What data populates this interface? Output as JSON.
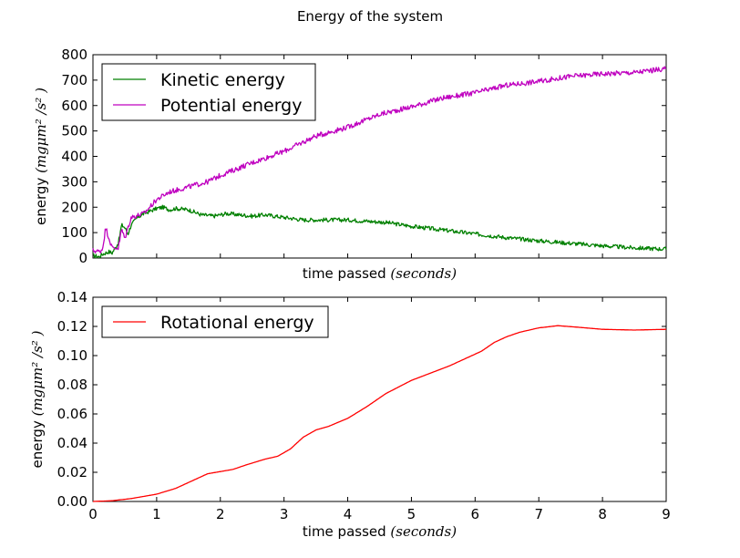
{
  "figure": {
    "title": "Energy of the system"
  },
  "chart_data": [
    {
      "type": "line",
      "xlabel_text": "time passed",
      "xlabel_unit": "(seconds)",
      "ylabel_text": "energy",
      "ylabel_unit": "(mgμm² /s² )",
      "xlim": [
        0,
        9
      ],
      "ylim": [
        0,
        800
      ],
      "x_ticks_labeled": false,
      "yticks": [
        0,
        100,
        200,
        300,
        400,
        500,
        600,
        700,
        800
      ],
      "xticks": [
        0,
        1,
        2,
        3,
        4,
        5,
        6,
        7,
        8,
        9
      ],
      "legend_position": "top-left",
      "series": [
        {
          "name": "Kinetic energy",
          "color": "#008000",
          "noise": 8,
          "x": [
            0,
            0.1,
            0.15,
            0.25,
            0.3,
            0.4,
            0.45,
            0.5,
            0.55,
            0.6,
            0.7,
            0.8,
            0.9,
            1.0,
            1.1,
            1.2,
            1.3,
            1.5,
            1.7,
            1.9,
            2.1,
            2.3,
            2.5,
            2.7,
            3.0,
            3.3,
            3.6,
            4.0,
            4.3,
            4.6,
            5.0,
            5.5,
            6.0,
            6.5,
            7.0,
            7.5,
            8.0,
            8.5,
            9.0
          ],
          "values": [
            10,
            5,
            15,
            25,
            20,
            60,
            130,
            120,
            95,
            130,
            160,
            175,
            185,
            195,
            200,
            190,
            195,
            190,
            170,
            165,
            175,
            170,
            165,
            170,
            160,
            150,
            150,
            150,
            145,
            140,
            125,
            110,
            95,
            80,
            68,
            58,
            48,
            40,
            35
          ]
        },
        {
          "name": "Potential energy",
          "color": "#bf00bf",
          "noise": 10,
          "x": [
            0,
            0.1,
            0.15,
            0.2,
            0.3,
            0.4,
            0.45,
            0.5,
            0.55,
            0.6,
            0.8,
            1.0,
            1.2,
            1.5,
            1.8,
            2.0,
            2.5,
            3.0,
            3.5,
            4.0,
            4.5,
            5.0,
            5.5,
            6.0,
            6.5,
            7.0,
            7.5,
            8.0,
            8.5,
            9.0
          ],
          "values": [
            30,
            25,
            35,
            120,
            40,
            40,
            115,
            75,
            120,
            160,
            175,
            230,
            260,
            280,
            300,
            325,
            375,
            420,
            480,
            515,
            565,
            595,
            630,
            650,
            680,
            695,
            715,
            725,
            730,
            745
          ]
        }
      ]
    },
    {
      "type": "line",
      "xlabel_text": "time passed",
      "xlabel_unit": "(seconds)",
      "ylabel_text": "energy",
      "ylabel_unit": "(mgμm² /s² )",
      "xlim": [
        0,
        9
      ],
      "ylim": [
        0,
        0.14
      ],
      "x_ticks_labeled": true,
      "xticks": [
        0,
        1,
        2,
        3,
        4,
        5,
        6,
        7,
        8,
        9
      ],
      "yticks": [
        0.0,
        0.02,
        0.04,
        0.06,
        0.08,
        0.1,
        0.12,
        0.14
      ],
      "legend_position": "top-left",
      "series": [
        {
          "name": "Rotational energy",
          "color": "#ff0000",
          "noise": 0,
          "x": [
            0,
            0.3,
            0.6,
            1.0,
            1.3,
            1.6,
            1.8,
            2.0,
            2.2,
            2.4,
            2.7,
            2.9,
            3.1,
            3.3,
            3.5,
            3.7,
            4.0,
            4.3,
            4.6,
            5.0,
            5.3,
            5.6,
            5.9,
            6.1,
            6.3,
            6.5,
            6.7,
            7.0,
            7.3,
            7.6,
            8.0,
            8.5,
            9.0
          ],
          "values": [
            0.0,
            0.0005,
            0.002,
            0.005,
            0.009,
            0.015,
            0.019,
            0.0205,
            0.022,
            0.025,
            0.029,
            0.031,
            0.036,
            0.044,
            0.049,
            0.0515,
            0.057,
            0.065,
            0.074,
            0.083,
            0.088,
            0.093,
            0.099,
            0.103,
            0.109,
            0.113,
            0.116,
            0.119,
            0.1205,
            0.1195,
            0.118,
            0.1175,
            0.118
          ]
        }
      ]
    }
  ]
}
